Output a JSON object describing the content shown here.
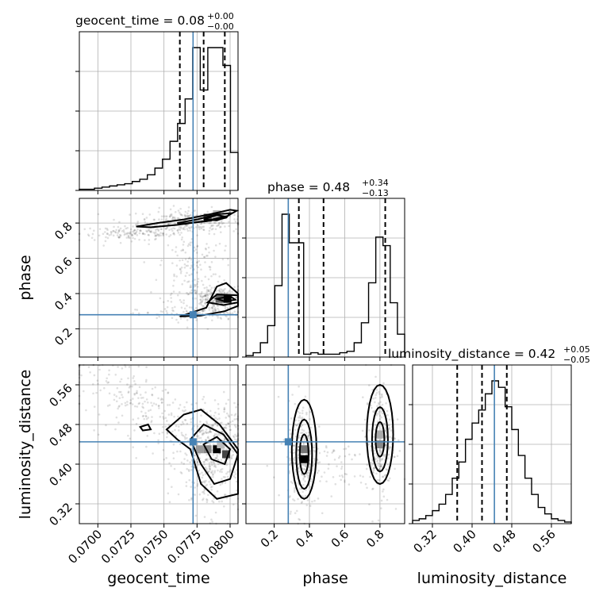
{
  "figure": {
    "titles": [
      {
        "param": "geocent_time",
        "value": "0.08",
        "plus": "+0.00",
        "minus": "−0.00"
      },
      {
        "param": "phase",
        "value": "0.48",
        "plus": "+0.34",
        "minus": "−0.13"
      },
      {
        "param": "luminosity_distance",
        "value": "0.42",
        "plus": "+0.05",
        "minus": "−0.05"
      }
    ],
    "axis_labels": {
      "geocent_time": "geocent_time",
      "phase": "phase",
      "luminosity_distance": "luminosity_distance"
    },
    "truth_color": "#4682b4"
  },
  "chart_data": {
    "type": "corner",
    "parameters": [
      "geocent_time",
      "phase",
      "luminosity_distance"
    ],
    "ranges": {
      "geocent_time": [
        0.0686,
        0.0806
      ],
      "phase": [
        0.04,
        0.94
      ],
      "luminosity_distance": [
        0.28,
        0.6
      ]
    },
    "ticks": {
      "geocent_time": {
        "values": [
          0.07,
          0.0725,
          0.075,
          0.0775,
          0.08
        ],
        "labels": [
          "0.0700",
          "0.0725",
          "0.0750",
          "0.0775",
          "0.0800"
        ]
      },
      "phase": {
        "values": [
          0.2,
          0.4,
          0.6,
          0.8
        ],
        "labels": [
          "0.2",
          "0.4",
          "0.6",
          "0.8"
        ]
      },
      "luminosity_distance": {
        "values": [
          0.32,
          0.4,
          0.48,
          0.56
        ],
        "labels": [
          "0.32",
          "0.40",
          "0.48",
          "0.56"
        ]
      }
    },
    "truths": {
      "geocent_time": 0.0772,
      "phase": 0.28,
      "luminosity_distance": 0.445
    },
    "quantiles": {
      "geocent_time": [
        0.0762,
        0.078,
        0.0796
      ],
      "phase": [
        0.34,
        0.48,
        0.83
      ],
      "luminosity_distance": [
        0.37,
        0.42,
        0.47
      ]
    },
    "histograms": {
      "geocent_time": [
        1,
        1,
        2,
        3,
        4,
        5,
        6,
        8,
        10,
        14,
        20,
        28,
        44,
        60,
        82,
        128,
        90,
        128,
        128,
        112,
        34
      ],
      "phase": [
        1,
        3,
        10,
        22,
        50,
        100,
        80,
        80,
        2,
        3,
        2,
        2,
        2,
        3,
        4,
        10,
        24,
        52,
        84,
        78,
        38,
        16
      ],
      "luminosity_distance": [
        2,
        3,
        5,
        8,
        12,
        18,
        28,
        38,
        52,
        62,
        70,
        80,
        88,
        84,
        72,
        58,
        42,
        28,
        18,
        10,
        6,
        3,
        2,
        1
      ]
    },
    "grid": true
  }
}
